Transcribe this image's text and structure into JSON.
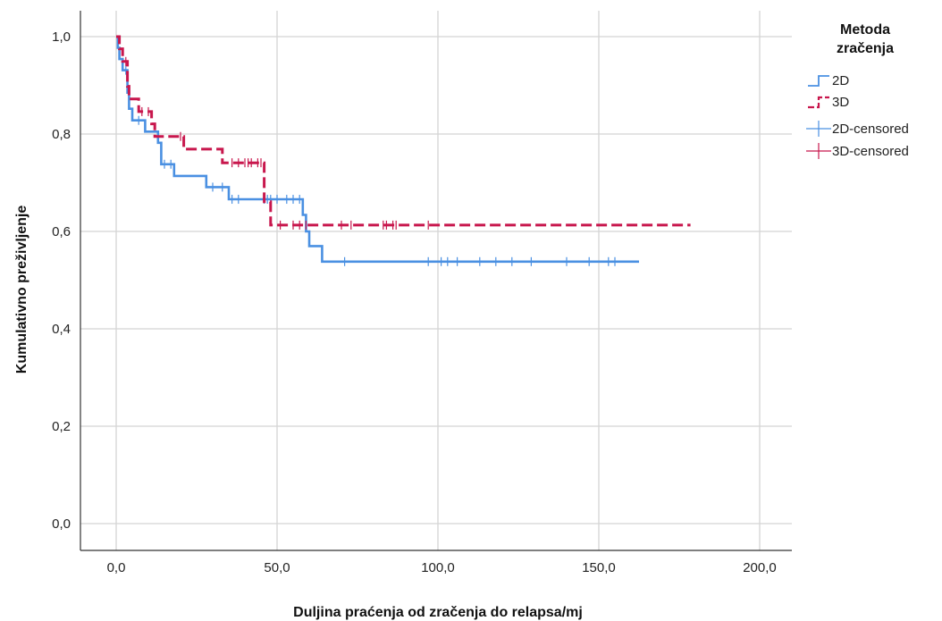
{
  "chart_data": {
    "type": "line",
    "subtype": "kaplan-meier-step",
    "xlabel": "Duljina praćenja od zračenja do relapsa/mj",
    "ylabel": "Kumulativno preživljenje",
    "xlim": [
      -10,
      210
    ],
    "ylim": [
      -0.05,
      1.05
    ],
    "x_ticks": [
      0,
      50,
      100,
      150,
      200
    ],
    "x_tick_labels": [
      "0,0",
      "50,0",
      "100,0",
      "150,0",
      "200,0"
    ],
    "y_ticks": [
      0,
      0.2,
      0.4,
      0.6,
      0.8,
      1.0
    ],
    "y_tick_labels": [
      "0,0",
      "0,2",
      "0,4",
      "0,6",
      "0,8",
      "1,0"
    ],
    "grid": true,
    "legend": {
      "title": "Metoda zračenja",
      "title_lines": [
        "Metoda",
        "zračenja"
      ],
      "position": "right",
      "entries": [
        "2D",
        "3D",
        "2D-censored",
        "3D-censored"
      ]
    },
    "series": [
      {
        "name": "2D",
        "color": "#4A90E2",
        "dashed": false,
        "steps": [
          [
            0,
            1.0
          ],
          [
            0.5,
            0.977
          ],
          [
            1,
            0.954
          ],
          [
            2,
            0.931
          ],
          [
            3.5,
            0.885
          ],
          [
            4,
            0.852
          ],
          [
            5,
            0.828
          ],
          [
            9,
            0.805
          ],
          [
            13,
            0.782
          ],
          [
            14,
            0.738
          ],
          [
            18,
            0.714
          ],
          [
            28,
            0.691
          ],
          [
            35,
            0.666
          ],
          [
            58,
            0.634
          ],
          [
            59,
            0.6
          ],
          [
            60,
            0.57
          ],
          [
            64,
            0.538
          ],
          [
            162.5,
            0.538
          ]
        ],
        "censored_x": [
          3,
          7,
          15,
          17,
          30,
          33,
          36,
          38,
          46,
          47,
          48,
          50,
          53,
          55,
          57,
          71,
          97,
          101,
          103,
          106,
          113,
          118,
          123,
          129,
          140,
          147,
          153,
          155
        ]
      },
      {
        "name": "3D",
        "color": "#C8174D",
        "dashed": true,
        "steps": [
          [
            0,
            1.0
          ],
          [
            1,
            0.975
          ],
          [
            2,
            0.949
          ],
          [
            3.5,
            0.898
          ],
          [
            4,
            0.872
          ],
          [
            7,
            0.846
          ],
          [
            11,
            0.821
          ],
          [
            12,
            0.795
          ],
          [
            21,
            0.769
          ],
          [
            33,
            0.741
          ],
          [
            46,
            0.661
          ],
          [
            48,
            0.613
          ],
          [
            178.5,
            0.613
          ]
        ],
        "censored_x": [
          3,
          8,
          10,
          20,
          36,
          38,
          40,
          41,
          42,
          44,
          45,
          51,
          55,
          57,
          59,
          70,
          73,
          83,
          84,
          86,
          87,
          97
        ]
      }
    ]
  }
}
